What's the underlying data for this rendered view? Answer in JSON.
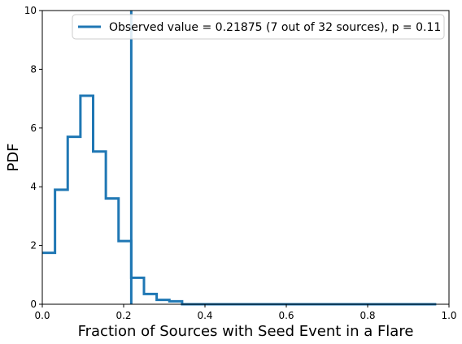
{
  "chart_data": {
    "type": "line",
    "title": "",
    "xlabel": "Fraction of Sources with Seed Event in a Flare",
    "ylabel": "PDF",
    "xlim": [
      0.0,
      1.0
    ],
    "ylim": [
      0,
      10
    ],
    "x_ticks": [
      "0.0",
      "0.2",
      "0.4",
      "0.6",
      "0.8",
      "1.0"
    ],
    "y_ticks": [
      "0",
      "2",
      "4",
      "6",
      "8",
      "10"
    ],
    "grid": false,
    "legend_position": "top-right",
    "series": [
      {
        "name": "Observed value = 0.21875 (7 out of 32 sources), p = 0.11",
        "kind": "step-histogram",
        "color": "#1f77b4",
        "bin_edges": [
          0.0,
          0.03125,
          0.0625,
          0.09375,
          0.125,
          0.15625,
          0.1875,
          0.21875,
          0.25,
          0.28125,
          0.3125,
          0.34375,
          0.375,
          0.96875
        ],
        "values": [
          1.75,
          3.9,
          5.7,
          7.1,
          5.2,
          3.6,
          2.15,
          0.9,
          0.35,
          0.15,
          0.1,
          0.0,
          0.0
        ]
      }
    ],
    "vertical_line": {
      "x": 0.21875,
      "color": "#1f77b4"
    }
  }
}
